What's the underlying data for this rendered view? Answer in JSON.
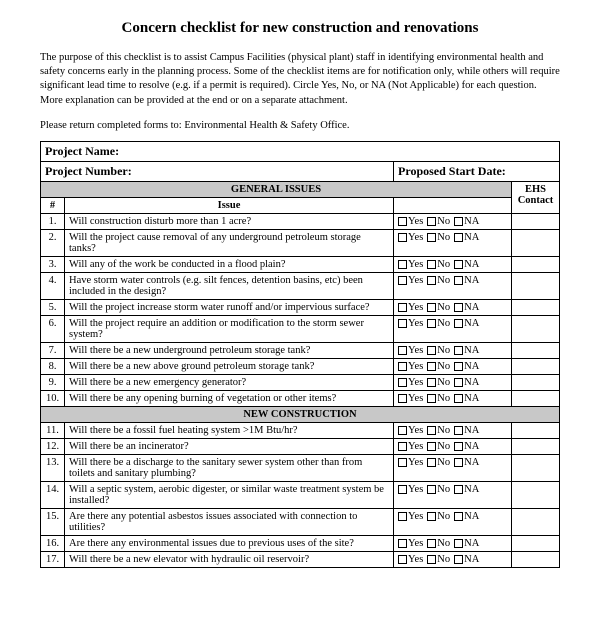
{
  "title": "Concern checklist for new construction and renovations",
  "intro": "The purpose of this checklist is to assist Campus Facilities (physical plant) staff in identifying environmental health and safety concerns early in the planning process. Some of the checklist items are for notification only, while others will require significant lead time to resolve (e.g. if a permit is required). Circle Yes, No, or NA (Not Applicable) for each question. More explanation can be provided at the end or on a separate attachment.",
  "return_line": "Please return completed forms to:  Environmental Health & Safety Office.",
  "fields": {
    "project_name_label": "Project Name:",
    "project_number_label": "Project Number:",
    "proposed_start_label": "Proposed  Start Date:"
  },
  "columns": {
    "num": "#",
    "issue": "Issue",
    "ehs": "EHS Contact"
  },
  "options": {
    "yes": "Yes",
    "no": "No",
    "na": "NA"
  },
  "sections": [
    {
      "heading": "GENERAL ISSUES",
      "rows": [
        {
          "n": "1.",
          "q": "Will construction disturb more than 1 acre?"
        },
        {
          "n": "2.",
          "q": "Will the project cause removal of any underground petroleum storage tanks?"
        },
        {
          "n": "3.",
          "q": "Will any of the work be conducted in a flood plain?"
        },
        {
          "n": "4.",
          "q": "Have storm water controls (e.g. silt fences, detention basins, etc) been included in the design?"
        },
        {
          "n": "5.",
          "q": "Will the project increase storm water runoff and/or impervious surface?"
        },
        {
          "n": "6.",
          "q": "Will the project require an addition or modification to the storm sewer system?"
        },
        {
          "n": "7.",
          "q": "Will there be a new underground petroleum storage tank?"
        },
        {
          "n": "8.",
          "q": "Will there be a new above ground petroleum storage tank?"
        },
        {
          "n": "9.",
          "q": "Will there be a new emergency generator?"
        },
        {
          "n": "10.",
          "q": "Will there be any opening burning of vegetation or other items?"
        }
      ]
    },
    {
      "heading": "NEW CONSTRUCTION",
      "rows": [
        {
          "n": "11.",
          "q": "Will there be a fossil fuel heating system >1M Btu/hr?"
        },
        {
          "n": "12.",
          "q": "Will there be an incinerator?"
        },
        {
          "n": "13.",
          "q": "Will there be a discharge to the sanitary sewer system other than from toilets and sanitary plumbing?"
        },
        {
          "n": "14.",
          "q": "Will a septic system, aerobic digester, or similar waste treatment system be installed?"
        },
        {
          "n": "15.",
          "q": "Are there any potential asbestos issues associated with connection to utilities?"
        },
        {
          "n": "16.",
          "q": "Are there any environmental issues due to previous uses of the site?"
        },
        {
          "n": "17.",
          "q": "Will there be a new elevator with hydraulic oil reservoir?"
        }
      ]
    }
  ]
}
